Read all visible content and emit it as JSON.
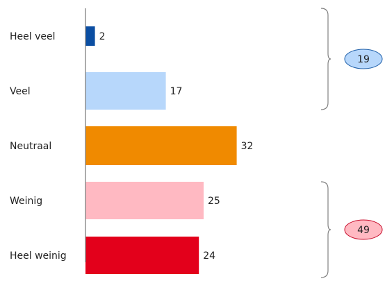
{
  "chart_data": {
    "type": "bar",
    "orientation": "horizontal",
    "categories": [
      "Heel veel",
      "Veel",
      "Neutraal",
      "Weinig",
      "Heel weinig"
    ],
    "values": [
      2,
      17,
      32,
      25,
      24
    ],
    "bar_colors": [
      "#0b4ea2",
      "#b7d7fb",
      "#f08a00",
      "#ffb9c2",
      "#e3001b"
    ],
    "groups": [
      {
        "label": "19",
        "categories": [
          "Heel veel",
          "Veel"
        ],
        "fill": "#b7d7fb",
        "stroke": "#1f5fa8"
      },
      {
        "label": "49",
        "categories": [
          "Weinig",
          "Heel weinig"
        ],
        "fill": "#ffb9c2",
        "stroke": "#c8102e"
      }
    ],
    "title": "",
    "xlabel": "",
    "ylabel": "",
    "grid": false,
    "axis_color": "#808080",
    "bracket_color": "#808080"
  }
}
